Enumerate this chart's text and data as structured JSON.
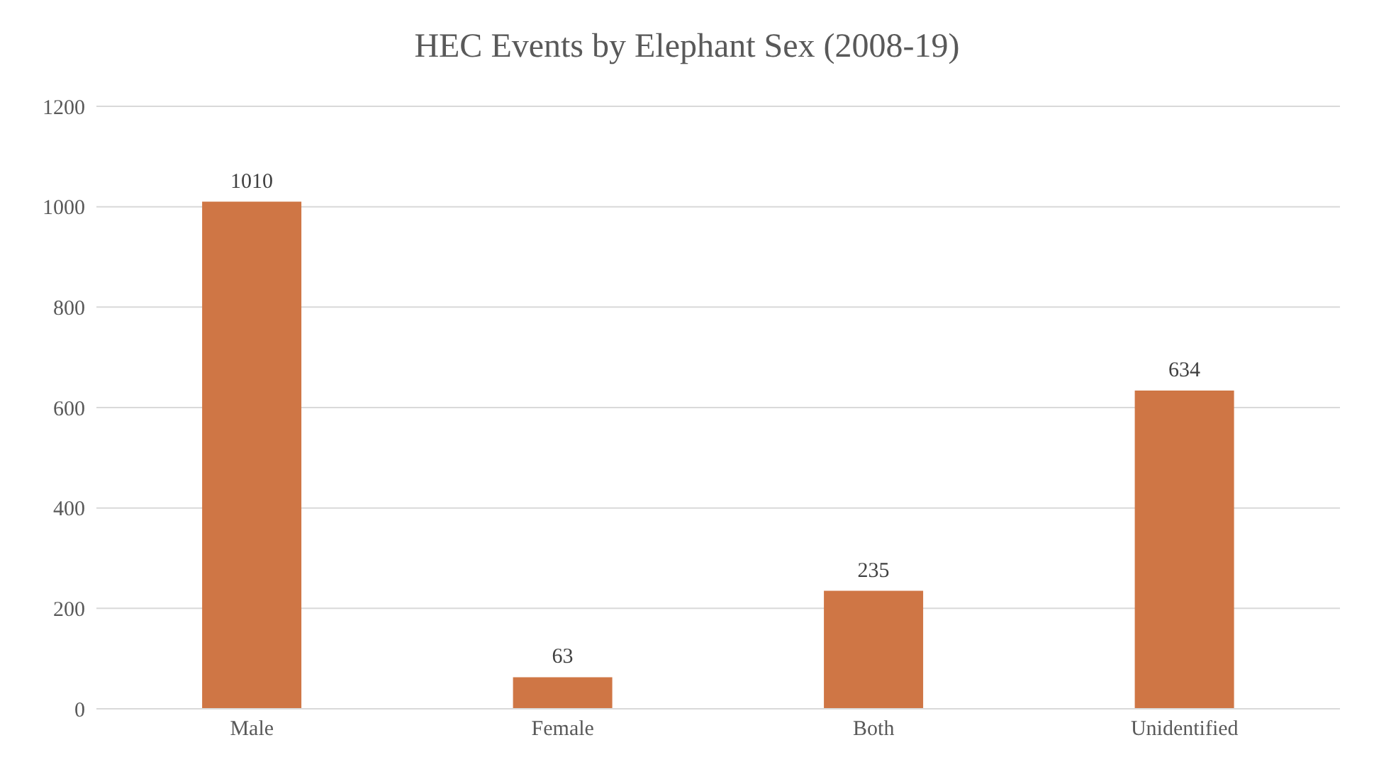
{
  "chart_data": {
    "type": "bar",
    "title": "HEC Events by Elephant Sex (2008-19)",
    "categories": [
      "Male",
      "Female",
      "Both",
      "Unidentified"
    ],
    "values": [
      1010,
      63,
      235,
      634
    ],
    "color": "#cf7645",
    "ylim": [
      0,
      1200
    ],
    "yticks": [
      0,
      200,
      400,
      600,
      800,
      1000,
      1200
    ],
    "grid": "y",
    "data_labels": true
  }
}
